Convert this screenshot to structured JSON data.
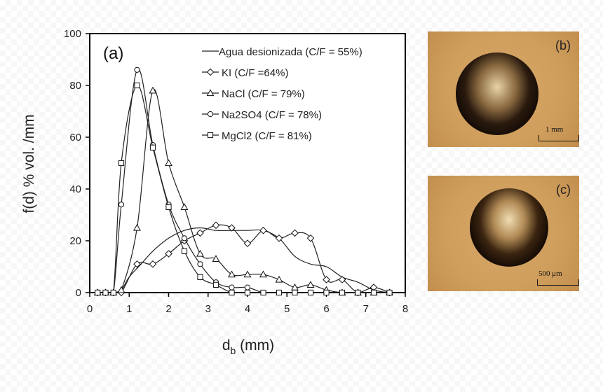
{
  "chart_data": {
    "type": "line",
    "panel_label": "(a)",
    "xlabel_main": "d",
    "xlabel_sub": "b",
    "xlabel_unit": " (mm)",
    "ylabel": "f(d) % vol. /mm",
    "xlim": [
      0,
      8
    ],
    "ylim": [
      0,
      100
    ],
    "xticks": [
      "0",
      "1",
      "2",
      "3",
      "4",
      "5",
      "6",
      "7",
      "8"
    ],
    "yticks": [
      "0",
      "20",
      "40",
      "60",
      "80",
      "100"
    ],
    "legend_position": "top-right",
    "series": [
      {
        "name": "Agua desionizada (C/F = 55%)",
        "marker": "none",
        "x": [
          0,
          0.3,
          0.6,
          0.8,
          1.0,
          1.3,
          1.6,
          2.0,
          2.4,
          2.8,
          3.2,
          3.6,
          4.0,
          4.4,
          4.8,
          5.2,
          5.6,
          6.0,
          6.4,
          6.8,
          7.2,
          7.6
        ],
        "y": [
          0,
          0,
          0,
          1,
          6,
          11,
          16,
          21,
          24,
          25,
          24,
          24,
          24,
          24,
          21,
          14,
          11,
          10,
          6,
          4,
          1,
          0
        ]
      },
      {
        "name": "KI (C/F =64%)",
        "marker": "diamond",
        "x": [
          0.2,
          0.4,
          0.6,
          0.8,
          1.2,
          1.6,
          2.0,
          2.4,
          2.8,
          3.2,
          3.6,
          4.0,
          4.4,
          4.8,
          5.2,
          5.6,
          6.0,
          6.4,
          6.8,
          7.2,
          7.6
        ],
        "y": [
          0,
          0,
          0,
          0,
          11,
          11,
          15,
          20,
          23,
          26,
          25,
          19,
          24,
          21,
          23,
          21,
          5,
          5,
          0,
          2,
          0
        ]
      },
      {
        "name": "NaCl (C/F = 79%)",
        "marker": "triangle",
        "x": [
          0.2,
          0.4,
          0.6,
          0.8,
          1.2,
          1.6,
          2.0,
          2.4,
          2.8,
          3.2,
          3.6,
          4.0,
          4.4,
          4.8,
          5.2,
          5.6,
          6.0,
          6.4,
          6.8,
          7.2,
          7.6
        ],
        "y": [
          0,
          0,
          0,
          1,
          25,
          78,
          50,
          33,
          15,
          13,
          7,
          7,
          7,
          5,
          2,
          3,
          1,
          0,
          0,
          0,
          0
        ]
      },
      {
        "name": "Na2SO4 (C/F = 78%)",
        "marker": "circle",
        "x": [
          0.2,
          0.4,
          0.6,
          0.8,
          1.2,
          1.6,
          2.0,
          2.4,
          2.8,
          3.2,
          3.6,
          4.0,
          4.4,
          4.8,
          5.2,
          5.6,
          6.0,
          6.4,
          6.8,
          7.2,
          7.6
        ],
        "y": [
          0,
          0,
          0,
          34,
          86,
          57,
          34,
          21,
          11,
          4,
          2,
          2,
          0,
          0,
          0,
          0,
          0,
          0,
          0,
          0,
          0
        ]
      },
      {
        "name": "MgCl2 (C/F = 81%)",
        "marker": "square",
        "x": [
          0.2,
          0.4,
          0.6,
          0.8,
          1.2,
          1.6,
          2.0,
          2.4,
          2.8,
          3.2,
          3.6,
          4.0,
          4.4,
          4.8,
          5.2,
          5.6,
          6.0,
          6.4,
          6.8,
          7.2,
          7.6
        ],
        "y": [
          0,
          0,
          0,
          50,
          80,
          56,
          33,
          16,
          6,
          3,
          0,
          0,
          0,
          0,
          0,
          0,
          0,
          0,
          0,
          0,
          0
        ]
      }
    ]
  },
  "photos": [
    {
      "label": "(b)",
      "scale": "1 mm"
    },
    {
      "label": "(c)",
      "scale": "500 μm"
    }
  ]
}
